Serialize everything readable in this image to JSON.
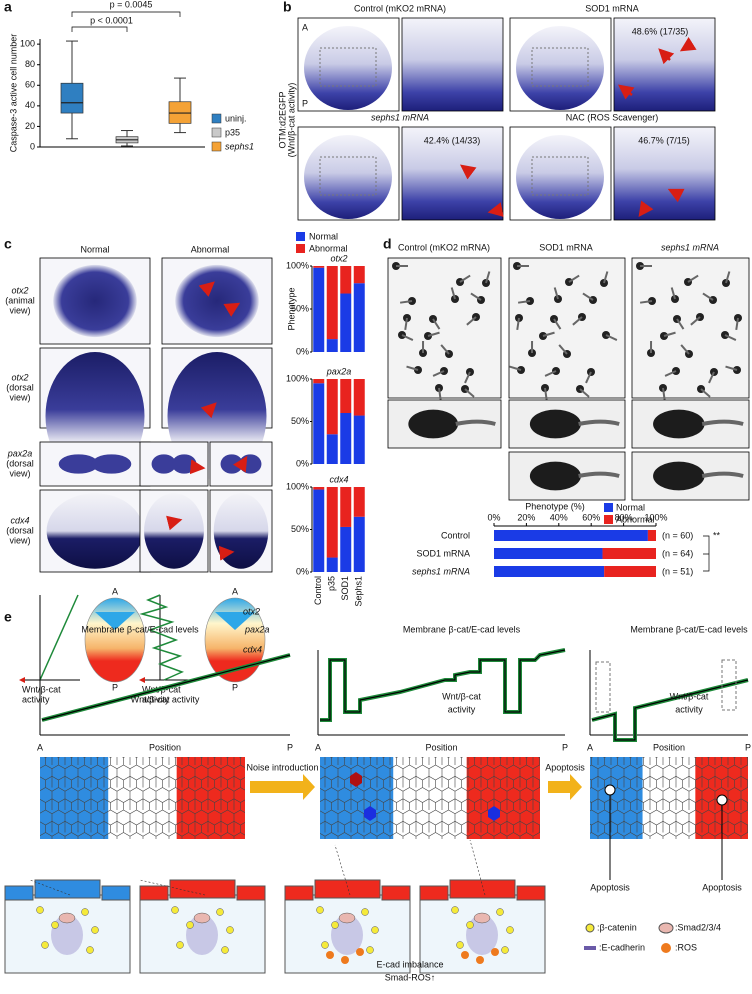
{
  "panel_labels": [
    "a",
    "b",
    "c",
    "d",
    "e"
  ],
  "chart_data": [
    {
      "type": "box",
      "ylabel": "Caspase-3 active cell number",
      "categories": [
        "uninj.",
        "p35",
        "sephs1"
      ],
      "colors": [
        "#2f7fc1",
        "#c9c9c9",
        "#f4a236"
      ],
      "min": [
        8,
        1,
        14
      ],
      "q1": [
        33,
        4,
        23
      ],
      "median": [
        43,
        7,
        33
      ],
      "q3": [
        62,
        10,
        44
      ],
      "max": [
        103,
        16,
        67
      ],
      "ylim": [
        0,
        105
      ],
      "yticks": [
        0,
        20,
        40,
        60,
        80,
        100
      ],
      "annotations": [
        "p = 0.0045",
        "p < 0.0001"
      ]
    },
    {
      "type": "stacked_bar",
      "title": "otx2",
      "ylabel": "Phenotype",
      "categories": [
        null,
        null,
        null,
        null
      ],
      "series": [
        {
          "name": "Normal",
          "color": "#1a3be6",
          "values": [
            98,
            15,
            68,
            80
          ]
        },
        {
          "name": "Abnormal",
          "color": "#e8231f",
          "values": [
            2,
            85,
            32,
            20
          ]
        }
      ],
      "ylim": [
        0,
        100
      ],
      "yticks": [
        {
          "value": 0,
          "label": "0%"
        },
        {
          "value": 50,
          "label": "50%"
        },
        {
          "value": 100,
          "label": "100%"
        }
      ]
    },
    {
      "type": "stacked_bar",
      "title": "pax2a",
      "categories": [
        null,
        null,
        null,
        null
      ],
      "series": [
        {
          "color": "#1a3be6",
          "values": [
            95,
            35,
            60,
            57
          ]
        },
        {
          "color": "#e8231f",
          "values": [
            5,
            65,
            40,
            43
          ]
        }
      ],
      "ylim": [
        0,
        100
      ],
      "yticks": [
        {
          "value": 0,
          "label": "0%"
        },
        {
          "value": 50,
          "label": "50%"
        },
        {
          "value": 100,
          "label": "100%"
        }
      ]
    },
    {
      "type": "stacked_bar",
      "title": "cdx4",
      "categories": [
        "Control",
        "p35",
        "SOD1",
        "Sephs1"
      ],
      "series": [
        {
          "color": "#1a3be6",
          "values": [
            97,
            17,
            53,
            65
          ]
        },
        {
          "color": "#e8231f",
          "values": [
            3,
            83,
            47,
            35
          ]
        }
      ],
      "ylim": [
        0,
        100
      ],
      "yticks": [
        {
          "value": 0,
          "label": "0%"
        },
        {
          "value": 50,
          "label": "50%"
        },
        {
          "value": 100,
          "label": "100%"
        }
      ]
    },
    {
      "type": "hbar_stacked",
      "xlabel": "Phenotype (%)",
      "categories": [
        "Control",
        "SOD1 mRNA",
        "sephs1 mRNA"
      ],
      "series": [
        {
          "name": "Normal",
          "color": "#1a3be6",
          "values": [
            95,
            67,
            68
          ]
        },
        {
          "name": "Abnormal",
          "color": "#e8231f",
          "values": [
            5,
            33,
            32
          ]
        }
      ],
      "xlim": [
        0,
        100
      ],
      "xticks": [
        {
          "value": 0,
          "label": "0%"
        },
        {
          "value": 20,
          "label": "20%"
        },
        {
          "value": 40,
          "label": "40%"
        },
        {
          "value": 60,
          "label": "60%"
        },
        {
          "value": 80,
          "label": "80%"
        },
        {
          "value": 100,
          "label": "100%"
        }
      ],
      "n_labels": [
        "(n = 60)",
        "(n = 64)",
        "(n = 51)"
      ],
      "significance": "**"
    }
  ],
  "panel_b": {
    "side_label": [
      "OTM:d2EGFP",
      "(Wnt/β-cat activity)"
    ],
    "axis_labels": [
      "A",
      "P"
    ],
    "titles": [
      "Control (mKO2 mRNA)",
      "SOD1 mRNA",
      "sephs1 mRNA",
      "NAC (ROS Scavenger)"
    ],
    "frequencies": [
      "48.6% (17/35)",
      "42.4% (14/33)",
      "46.7% (7/15)"
    ]
  },
  "panel_c": {
    "columns": [
      "Normal",
      "Abnormal"
    ],
    "rows": [
      {
        "gene": "otx2",
        "view": [
          "(animal",
          "view)"
        ]
      },
      {
        "gene": "otx2",
        "view": [
          "(dorsal",
          "view)"
        ]
      },
      {
        "gene": "pax2a",
        "view": [
          "(dorsal",
          "view)"
        ]
      },
      {
        "gene": "cdx4",
        "view": [
          "(dorsal",
          "view)"
        ]
      }
    ],
    "schematic": {
      "axis_labels": [
        "A",
        "P"
      ],
      "x_label": [
        "Wnt/β-cat",
        "activity"
      ],
      "genes": [
        "otx2",
        "pax2a",
        "cdx4"
      ]
    }
  },
  "panel_d": {
    "titles": [
      "Control (mKO2 mRNA)",
      "SOD1 mRNA",
      "sephs1 mRNA"
    ]
  },
  "panel_e": {
    "plot_labels": [
      "Membrane β-cat/E-cad levels",
      "Wnt/β-cat activity"
    ],
    "activity_lines": [
      "Wnt/β-cat",
      "activity"
    ],
    "axis_labels": [
      "A",
      "P"
    ],
    "x_label": "Position",
    "steps": [
      "Noise introduction",
      "Apoptosis"
    ],
    "apoptosis_label": "Apoptosis",
    "imbalance": [
      "E-cad imbalance",
      "Smad-ROS↑"
    ],
    "legend": [
      ":β-catenin",
      ":Smad2/3/4",
      ":E-cadherin",
      ":ROS"
    ]
  }
}
